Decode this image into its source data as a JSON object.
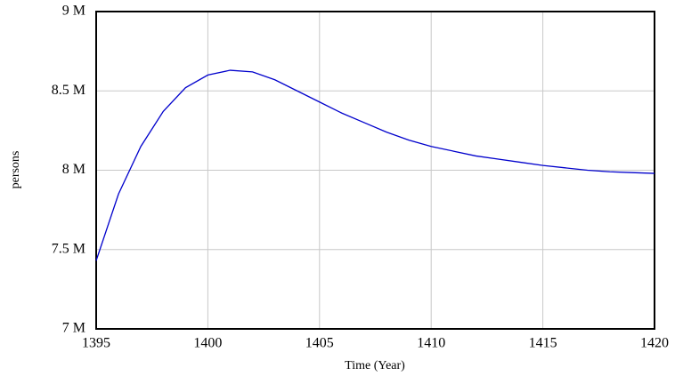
{
  "chart_data": {
    "type": "line",
    "xlabel": "Time (Year)",
    "ylabel": "persons",
    "x": [
      1395,
      1396,
      1397,
      1398,
      1399,
      1400,
      1401,
      1402,
      1403,
      1404,
      1405,
      1406,
      1407,
      1408,
      1409,
      1410,
      1411,
      1412,
      1413,
      1414,
      1415,
      1416,
      1417,
      1418,
      1419,
      1420
    ],
    "values": [
      7430000,
      7850000,
      8150000,
      8370000,
      8520000,
      8600000,
      8630000,
      8620000,
      8570000,
      8500000,
      8430000,
      8360000,
      8300000,
      8240000,
      8190000,
      8150000,
      8120000,
      8090000,
      8070000,
      8050000,
      8030000,
      8015000,
      8000000,
      7990000,
      7985000,
      7980000
    ],
    "color": "#0000cc",
    "xlim": [
      1395,
      1420
    ],
    "xticks": [
      1395,
      1400,
      1405,
      1410,
      1415,
      1420
    ],
    "ylim": [
      7000000,
      9000000
    ],
    "yticks": [
      {
        "value": 7000000,
        "label": "7 M"
      },
      {
        "value": 7500000,
        "label": "7.5 M"
      },
      {
        "value": 8000000,
        "label": "8 M"
      },
      {
        "value": 8500000,
        "label": "8.5 M"
      },
      {
        "value": 9000000,
        "label": "9 M"
      }
    ],
    "grid": true
  }
}
